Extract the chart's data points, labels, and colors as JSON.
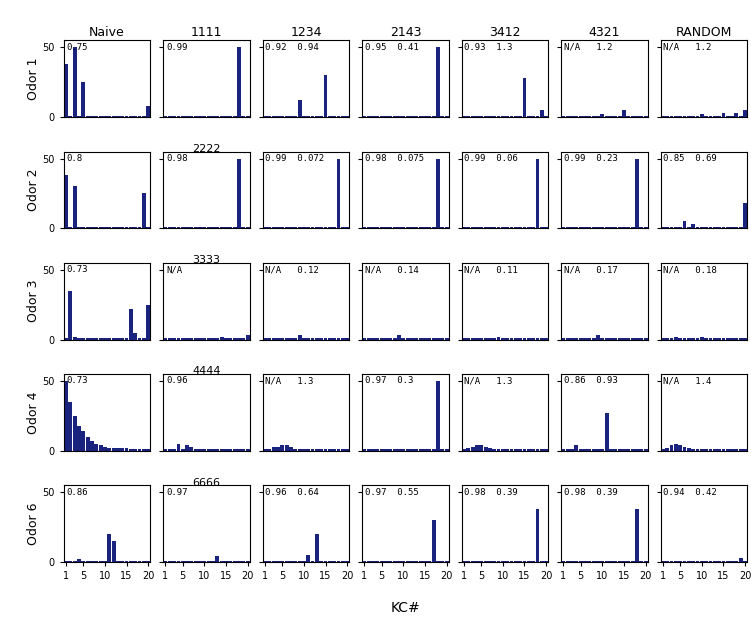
{
  "col_headers": [
    "Naive",
    "1111",
    "1234",
    "2143",
    "3412",
    "4321",
    "RANDOM"
  ],
  "row_labels": [
    "Odor 1",
    "Odor 2",
    "Odor 3",
    "Odor 4",
    "Odor 6"
  ],
  "bar_color": "#1a237e",
  "ylim": [
    0,
    50
  ],
  "xlabel": "KC#",
  "n_bars": 20,
  "annotations": [
    [
      "0.75",
      "0.99",
      "0.92  0.94",
      "0.95  0.41",
      "0.93  1.3",
      "N/A   1.2",
      "N/A   1.2"
    ],
    [
      "0.8",
      "0.98",
      "0.99  0.072",
      "0.98  0.075",
      "0.99  0.06",
      "0.99  0.23",
      "0.85  0.69"
    ],
    [
      "0.73",
      "N/A",
      "N/A   0.12",
      "N/A   0.14",
      "N/A   0.11",
      "N/A   0.17",
      "N/A   0.18"
    ],
    [
      "0.73",
      "0.96",
      "N/A   1.3",
      "0.97  0.3",
      "N/A   1.3",
      "0.86  0.93",
      "N/A   1.4"
    ],
    [
      "0.86",
      "0.97",
      "0.96  0.64",
      "0.97  0.55",
      "0.98  0.39",
      "0.98  0.39",
      "0.94  0.42"
    ]
  ],
  "row_sublabels": [
    "2222",
    "3333",
    "4444",
    "6666",
    ""
  ],
  "bar_data": {
    "naive": [
      [
        38,
        1,
        50,
        1,
        25,
        1,
        1,
        1,
        1,
        1,
        1,
        1,
        1,
        1,
        1,
        1,
        1,
        1,
        1,
        8
      ],
      [
        38,
        1,
        30,
        1,
        1,
        1,
        1,
        1,
        1,
        1,
        1,
        1,
        1,
        1,
        1,
        1,
        1,
        1,
        25,
        1
      ],
      [
        1,
        35,
        2,
        1,
        1,
        1,
        1,
        1,
        1,
        1,
        1,
        1,
        1,
        1,
        1,
        22,
        5,
        1,
        1,
        25
      ],
      [
        50,
        35,
        25,
        18,
        14,
        10,
        7,
        5,
        4,
        3,
        2,
        2,
        2,
        2,
        2,
        1,
        1,
        1,
        1,
        1
      ],
      [
        1,
        1,
        1,
        2,
        1,
        1,
        1,
        1,
        1,
        1,
        20,
        15,
        1,
        1,
        1,
        1,
        1,
        1,
        1,
        1
      ]
    ],
    "1111": [
      [
        1,
        1,
        1,
        1,
        1,
        1,
        1,
        1,
        1,
        1,
        1,
        1,
        1,
        1,
        1,
        1,
        1,
        50,
        1,
        1
      ],
      [
        1,
        1,
        1,
        1,
        1,
        1,
        1,
        1,
        1,
        1,
        1,
        1,
        1,
        1,
        1,
        1,
        1,
        50,
        1,
        1
      ],
      [
        1,
        1,
        1,
        1,
        1,
        1,
        1,
        1,
        1,
        1,
        1,
        1,
        1,
        2,
        1,
        1,
        1,
        1,
        1,
        3
      ],
      [
        1,
        1,
        1,
        5,
        1,
        4,
        3,
        1,
        1,
        1,
        1,
        1,
        1,
        1,
        1,
        1,
        1,
        1,
        1,
        1
      ],
      [
        1,
        1,
        1,
        1,
        1,
        1,
        1,
        1,
        1,
        1,
        1,
        1,
        4,
        1,
        1,
        1,
        1,
        1,
        1,
        1
      ]
    ],
    "1234": [
      [
        1,
        1,
        1,
        1,
        1,
        1,
        1,
        1,
        12,
        1,
        1,
        1,
        1,
        1,
        30,
        1,
        1,
        1,
        1,
        1
      ],
      [
        1,
        1,
        1,
        1,
        1,
        1,
        1,
        1,
        1,
        1,
        1,
        1,
        1,
        1,
        1,
        1,
        1,
        50,
        1,
        1
      ],
      [
        1,
        1,
        1,
        1,
        1,
        1,
        1,
        1,
        3,
        1,
        1,
        1,
        1,
        1,
        1,
        1,
        1,
        1,
        1,
        1
      ],
      [
        1,
        1,
        3,
        3,
        4,
        4,
        3,
        1,
        1,
        1,
        1,
        1,
        1,
        1,
        1,
        1,
        1,
        1,
        1,
        1
      ],
      [
        1,
        1,
        1,
        1,
        1,
        1,
        1,
        1,
        1,
        1,
        5,
        1,
        20,
        1,
        1,
        1,
        1,
        1,
        1,
        1
      ]
    ],
    "2143": [
      [
        1,
        1,
        1,
        1,
        1,
        1,
        1,
        1,
        1,
        1,
        1,
        1,
        1,
        1,
        1,
        1,
        1,
        50,
        1,
        1
      ],
      [
        1,
        1,
        1,
        1,
        1,
        1,
        1,
        1,
        1,
        1,
        1,
        1,
        1,
        1,
        1,
        1,
        1,
        50,
        1,
        1
      ],
      [
        1,
        1,
        1,
        1,
        1,
        1,
        1,
        1,
        3,
        1,
        1,
        1,
        1,
        1,
        1,
        1,
        1,
        1,
        1,
        1
      ],
      [
        1,
        1,
        1,
        1,
        1,
        1,
        1,
        1,
        1,
        1,
        1,
        1,
        1,
        1,
        1,
        1,
        1,
        50,
        1,
        1
      ],
      [
        1,
        1,
        1,
        1,
        1,
        1,
        1,
        1,
        1,
        1,
        1,
        1,
        1,
        1,
        1,
        1,
        30,
        1,
        1,
        1
      ]
    ],
    "3412": [
      [
        1,
        1,
        1,
        1,
        1,
        1,
        1,
        1,
        1,
        1,
        1,
        1,
        1,
        1,
        28,
        1,
        1,
        1,
        5,
        1
      ],
      [
        1,
        1,
        1,
        1,
        1,
        1,
        1,
        1,
        1,
        1,
        1,
        1,
        1,
        1,
        1,
        1,
        1,
        50,
        1,
        1
      ],
      [
        1,
        1,
        1,
        1,
        1,
        1,
        1,
        1,
        2,
        1,
        1,
        1,
        1,
        1,
        1,
        1,
        1,
        1,
        1,
        1
      ],
      [
        1,
        2,
        3,
        4,
        4,
        3,
        2,
        1,
        1,
        1,
        1,
        1,
        1,
        1,
        1,
        1,
        1,
        1,
        1,
        1
      ],
      [
        1,
        1,
        1,
        1,
        1,
        1,
        1,
        1,
        1,
        1,
        1,
        1,
        1,
        1,
        1,
        1,
        1,
        38,
        1,
        1
      ]
    ],
    "4321": [
      [
        1,
        1,
        1,
        1,
        1,
        1,
        1,
        1,
        1,
        2,
        1,
        1,
        1,
        1,
        5,
        1,
        1,
        1,
        1,
        1
      ],
      [
        1,
        1,
        1,
        1,
        1,
        1,
        1,
        1,
        1,
        1,
        1,
        1,
        1,
        1,
        1,
        1,
        1,
        50,
        1,
        1
      ],
      [
        1,
        1,
        1,
        1,
        1,
        1,
        1,
        1,
        3,
        1,
        1,
        1,
        1,
        1,
        1,
        1,
        1,
        1,
        1,
        1
      ],
      [
        1,
        1,
        1,
        4,
        1,
        1,
        1,
        1,
        1,
        1,
        27,
        1,
        1,
        1,
        1,
        1,
        1,
        1,
        1,
        1
      ],
      [
        1,
        1,
        1,
        1,
        1,
        1,
        1,
        1,
        1,
        1,
        1,
        1,
        1,
        1,
        1,
        1,
        1,
        38,
        1,
        1
      ]
    ],
    "RANDOM": [
      [
        1,
        1,
        1,
        1,
        1,
        1,
        1,
        1,
        1,
        2,
        1,
        1,
        1,
        1,
        3,
        1,
        1,
        3,
        1,
        5
      ],
      [
        1,
        1,
        1,
        1,
        1,
        5,
        1,
        3,
        1,
        1,
        1,
        1,
        1,
        1,
        1,
        1,
        1,
        1,
        1,
        18
      ],
      [
        1,
        1,
        1,
        2,
        1,
        1,
        1,
        1,
        1,
        2,
        1,
        1,
        1,
        1,
        1,
        1,
        1,
        1,
        1,
        1
      ],
      [
        1,
        2,
        4,
        5,
        4,
        3,
        2,
        1,
        1,
        1,
        1,
        1,
        1,
        1,
        1,
        1,
        1,
        1,
        1,
        1
      ],
      [
        1,
        1,
        1,
        1,
        1,
        1,
        1,
        1,
        1,
        1,
        1,
        1,
        1,
        1,
        1,
        1,
        1,
        1,
        3,
        1
      ]
    ]
  }
}
